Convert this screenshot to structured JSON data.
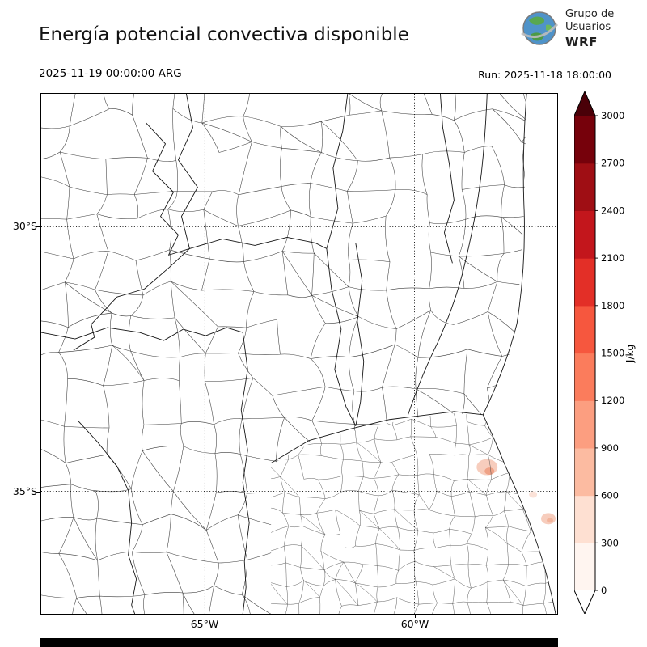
{
  "header": {
    "title": "Energía potencial convectiva disponible",
    "logo": {
      "line1": "Grupo de",
      "line2": "Usuarios",
      "line3": "WRF"
    }
  },
  "subheader": {
    "valid_time": "2025-11-19 00:00:00 ARG",
    "run": "Run: 2025-11-18 18:00:00"
  },
  "map": {
    "y_ticks": [
      {
        "label": "30°S"
      },
      {
        "label": "35°S"
      }
    ],
    "x_ticks": [
      {
        "label": "65°W"
      },
      {
        "label": "60°W"
      }
    ]
  },
  "chart_data": {
    "type": "heatmap",
    "title": "Energía potencial convectiva disponible",
    "variable": "CAPE (convective available potential energy)",
    "units": "J/kg",
    "valid_time": "2025-11-19 00:00:00 ARG",
    "model_run": "Run: 2025-11-18 18:00:00",
    "region": "Central Argentina with province and department boundaries",
    "lat_gridlines": [
      "30°S",
      "35°S"
    ],
    "lon_gridlines": [
      "65°W",
      "60°W"
    ],
    "colorbar": {
      "label": "J/kg",
      "orientation": "vertical",
      "position": "right",
      "extend": "both",
      "tick_levels": [
        0,
        300,
        600,
        900,
        1200,
        1500,
        1800,
        2100,
        2400,
        2700,
        3000
      ],
      "segment_colors_low_to_high": [
        "#fff5f0",
        "#fee0d2",
        "#fcbba1",
        "#fc9e80",
        "#fb7c5c",
        "#f6573e",
        "#e32f27",
        "#c3161c",
        "#9f0e14",
        "#76010b"
      ],
      "extend_under_color": "#ffffff",
      "extend_over_color": "#4a0008"
    },
    "field_summary": "CAPE near 0 J/kg across almost the whole domain; weak maxima (~300-900 J/kg) only in small spots over the Atlantic just off the Buenos Aires coast near 35°S-36°S."
  }
}
